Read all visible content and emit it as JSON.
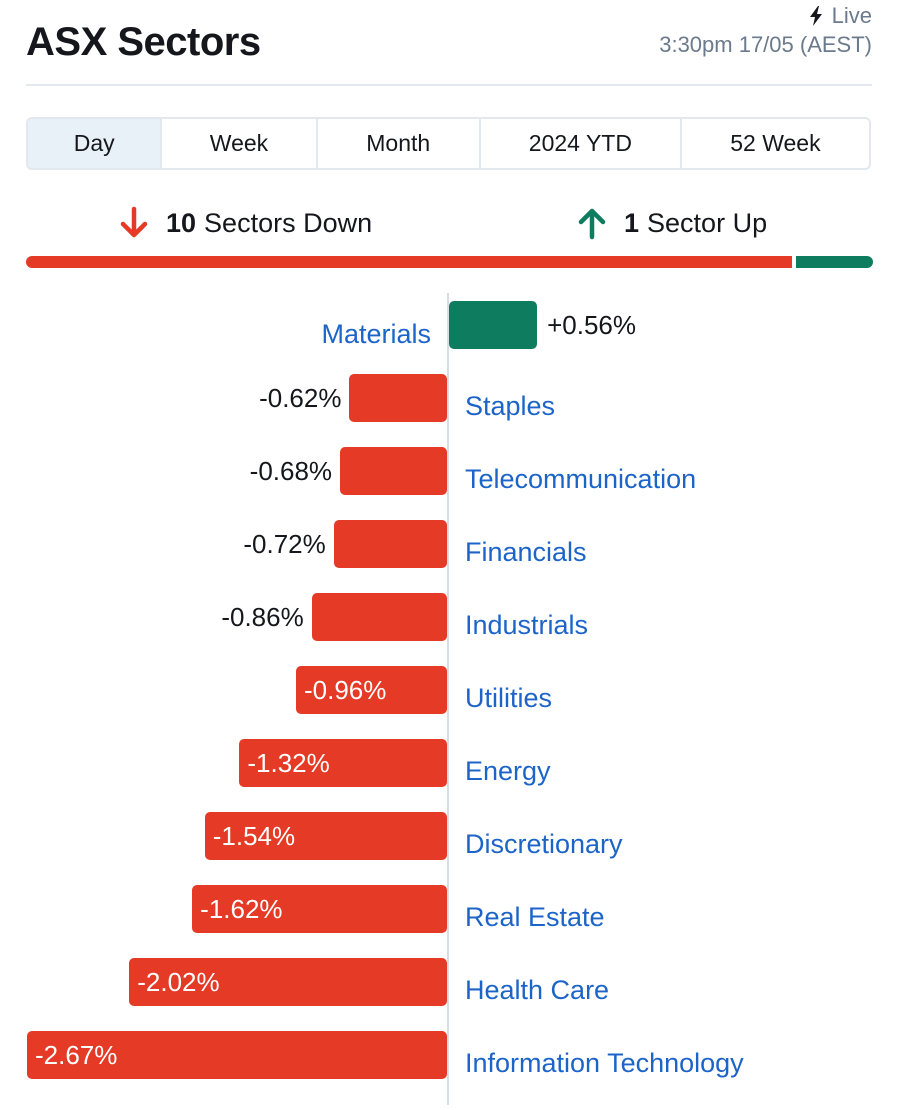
{
  "header": {
    "title": "ASX Sectors",
    "live_label": "Live",
    "timestamp": "3:30pm 17/05 (AEST)"
  },
  "tabs": [
    {
      "label": "Day",
      "active": true
    },
    {
      "label": "Week",
      "active": false
    },
    {
      "label": "Month",
      "active": false
    },
    {
      "label": "2024 YTD",
      "active": false
    },
    {
      "label": "52 Week",
      "active": false
    }
  ],
  "summary": {
    "down_count": "10",
    "down_label": "Sectors Down",
    "up_count": "1",
    "up_label": "Sector Up"
  },
  "colors": {
    "negative": "#e43a26",
    "positive": "#0e7d5f",
    "link": "#1c64c8",
    "active_tab": "#e8f0f8"
  },
  "icons": {
    "live": "lightning-icon",
    "down": "arrow-down-icon",
    "up": "arrow-up-icon"
  },
  "chart_data": {
    "type": "bar",
    "orientation": "horizontal",
    "categories": [
      "Materials",
      "Staples",
      "Telecommunication",
      "Financials",
      "Industrials",
      "Utilities",
      "Energy",
      "Discretionary",
      "Real Estate",
      "Health Care",
      "Information Technology"
    ],
    "values": [
      0.56,
      -0.62,
      -0.68,
      -0.72,
      -0.86,
      -0.96,
      -1.32,
      -1.54,
      -1.62,
      -2.02,
      -2.67
    ],
    "labels": [
      "+0.56%",
      "-0.62%",
      "-0.68%",
      "-0.72%",
      "-0.86%",
      "-0.96%",
      "-1.32%",
      "-1.54%",
      "-1.62%",
      "-2.02%",
      "-2.67%"
    ],
    "breadth": {
      "down": 10,
      "up": 1
    }
  }
}
